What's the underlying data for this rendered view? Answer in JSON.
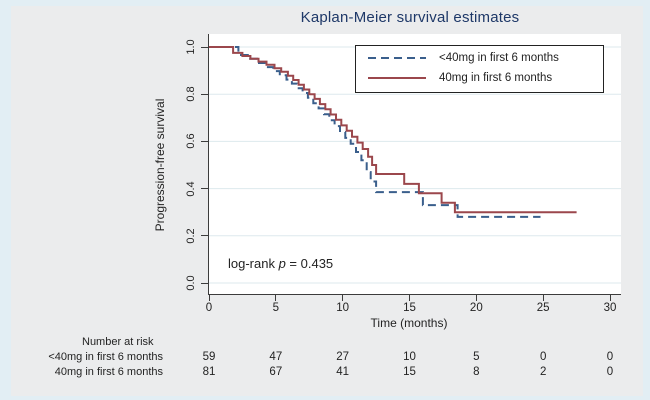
{
  "chart_data": {
    "type": "line",
    "variant": "kaplan-meier-step",
    "title": "Kaplan-Meier survival estimates",
    "xlabel": "Time (months)",
    "ylabel": "Progression-free survival",
    "xlim": [
      0,
      30
    ],
    "ylim": [
      0.0,
      1.0
    ],
    "xticks": [
      0,
      5,
      10,
      15,
      20,
      25,
      30
    ],
    "yticks": [
      {
        "value": 0.0,
        "label": "0.0"
      },
      {
        "value": 0.2,
        "label": "0.2"
      },
      {
        "value": 0.4,
        "label": "0.4"
      },
      {
        "value": 0.6,
        "label": "0.6"
      },
      {
        "value": 0.8,
        "label": "0.8"
      },
      {
        "value": 1.0,
        "label": "1.0"
      }
    ],
    "grid": "horizontal",
    "legend_position": "top-right-inside",
    "annotation": {
      "text": "log-rank p = 0.435",
      "prefix": "log-rank ",
      "variable": "p",
      "suffix": " = 0.435"
    },
    "series": [
      {
        "id": "lt40mg",
        "name": "<40mg in first 6 months",
        "style": "dashed",
        "color": "#3a5f8c",
        "points": [
          [
            0,
            1.0
          ],
          [
            2.2,
            0.966
          ],
          [
            2.9,
            0.95
          ],
          [
            3.6,
            0.932
          ],
          [
            4.2,
            0.915
          ],
          [
            4.8,
            0.898
          ],
          [
            5.3,
            0.88
          ],
          [
            5.8,
            0.862
          ],
          [
            6.2,
            0.845
          ],
          [
            6.6,
            0.825
          ],
          [
            7.0,
            0.805
          ],
          [
            7.4,
            0.785
          ],
          [
            7.8,
            0.762
          ],
          [
            8.2,
            0.74
          ],
          [
            8.6,
            0.715
          ],
          [
            9.0,
            0.69
          ],
          [
            9.4,
            0.665
          ],
          [
            9.8,
            0.64
          ],
          [
            10.2,
            0.615
          ],
          [
            10.6,
            0.59
          ],
          [
            11.0,
            0.555
          ],
          [
            11.4,
            0.52
          ],
          [
            11.8,
            0.47
          ],
          [
            12.1,
            0.43
          ],
          [
            12.5,
            0.385
          ],
          [
            16.0,
            0.33
          ],
          [
            18.6,
            0.28
          ]
        ],
        "end_time": 24.8
      },
      {
        "id": "40mg",
        "name": "40mg in first 6 months",
        "style": "solid",
        "color": "#9b474c",
        "points": [
          [
            0,
            1.0
          ],
          [
            1.8,
            0.975
          ],
          [
            2.5,
            0.962
          ],
          [
            3.1,
            0.95
          ],
          [
            3.7,
            0.938
          ],
          [
            4.3,
            0.925
          ],
          [
            4.9,
            0.91
          ],
          [
            5.4,
            0.895
          ],
          [
            5.9,
            0.878
          ],
          [
            6.3,
            0.86
          ],
          [
            6.7,
            0.84
          ],
          [
            7.1,
            0.82
          ],
          [
            7.5,
            0.8
          ],
          [
            7.9,
            0.78
          ],
          [
            8.3,
            0.758
          ],
          [
            8.7,
            0.736
          ],
          [
            9.1,
            0.714
          ],
          [
            9.5,
            0.692
          ],
          [
            9.9,
            0.668
          ],
          [
            10.3,
            0.645
          ],
          [
            10.7,
            0.62
          ],
          [
            11.1,
            0.595
          ],
          [
            11.5,
            0.568
          ],
          [
            11.9,
            0.535
          ],
          [
            12.2,
            0.5
          ],
          [
            12.5,
            0.462
          ],
          [
            14.6,
            0.42
          ],
          [
            15.7,
            0.38
          ],
          [
            17.4,
            0.34
          ],
          [
            18.4,
            0.3
          ]
        ],
        "end_time": 27.5
      }
    ],
    "risk_table": {
      "header": "Number at risk",
      "times": [
        0,
        5,
        10,
        15,
        20,
        25,
        30
      ],
      "rows": [
        {
          "label": "<40mg in first 6 months",
          "counts": [
            59,
            47,
            27,
            10,
            5,
            0,
            0
          ]
        },
        {
          "label": "40mg in first 6 months",
          "counts": [
            81,
            67,
            41,
            15,
            8,
            2,
            0
          ]
        }
      ]
    },
    "colors": {
      "title": "#1e3868",
      "series_lt40mg": "#3a5f8c",
      "series_40mg": "#9b474c",
      "gridline": "#dde9ed",
      "axis": "#3c3c3c",
      "plot_background": "#ffffff",
      "figure_background": "#ebeced",
      "frame": "#e2eef4",
      "text": "#232323"
    }
  }
}
